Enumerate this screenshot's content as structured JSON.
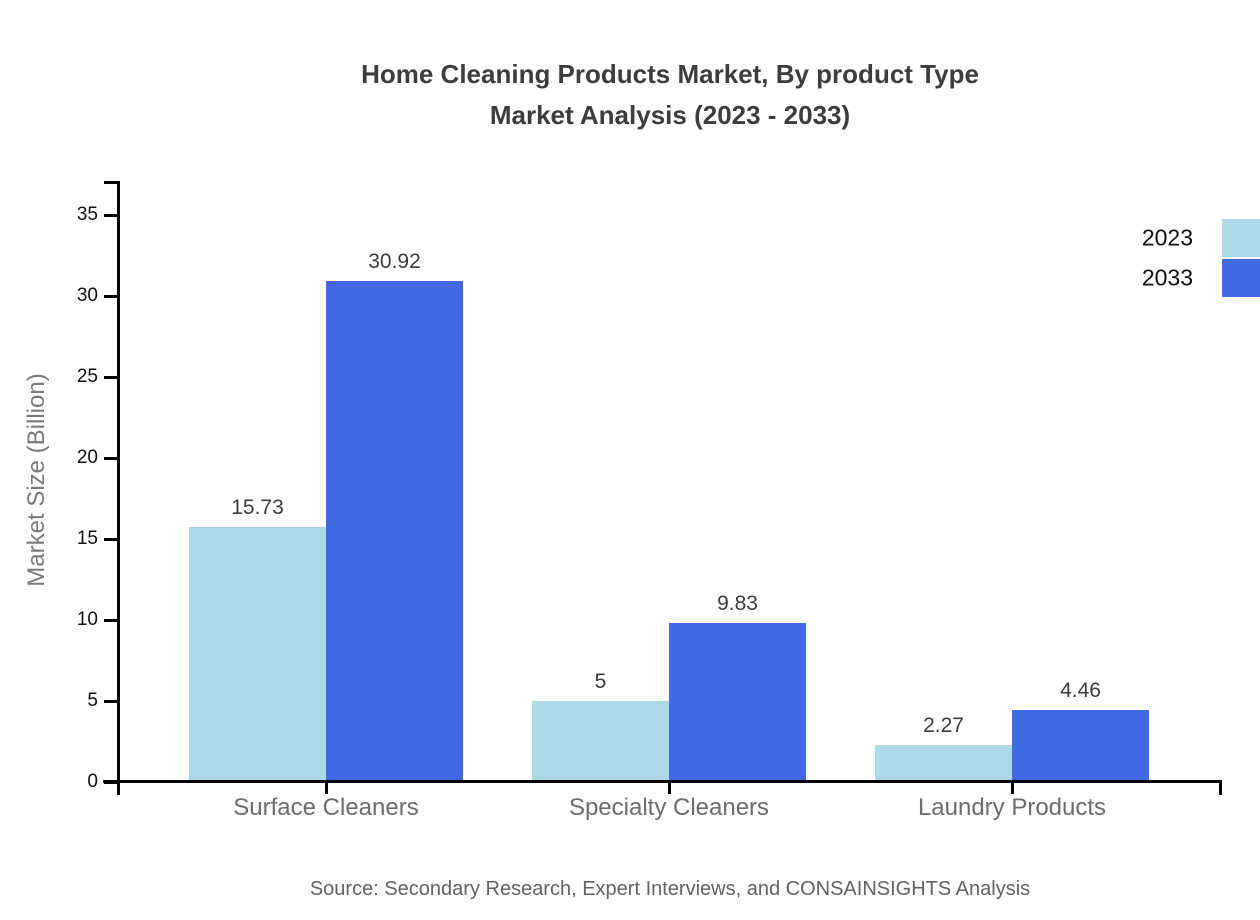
{
  "title": {
    "line1": "Home Cleaning Products Market, By product Type",
    "line2": "Market Analysis (2023 - 2033)"
  },
  "chart_data": {
    "type": "bar",
    "categories": [
      "Surface Cleaners",
      "Specialty Cleaners",
      "Laundry Products"
    ],
    "series": [
      {
        "name": "2023",
        "color": "#ADD8E6",
        "values": [
          15.73,
          5,
          2.27
        ]
      },
      {
        "name": "2033",
        "color": "#4169E1",
        "values": [
          30.92,
          9.83,
          4.46
        ]
      }
    ],
    "value_labels": [
      [
        "15.73",
        "5",
        "2.27"
      ],
      [
        "30.92",
        "9.83",
        "4.46"
      ]
    ],
    "title": "Home Cleaning Products Market, By product Type Market Analysis (2023 - 2033)",
    "xlabel": "",
    "ylabel": "Market Size (Billion)",
    "ylim": [
      0,
      35
    ],
    "y_ticks": [
      0,
      5,
      10,
      15,
      20,
      25,
      30,
      35
    ],
    "grid": false,
    "legend_position": "right"
  },
  "source": "Source: Secondary Research, Expert Interviews, and CONSAINSIGHTS Analysis"
}
